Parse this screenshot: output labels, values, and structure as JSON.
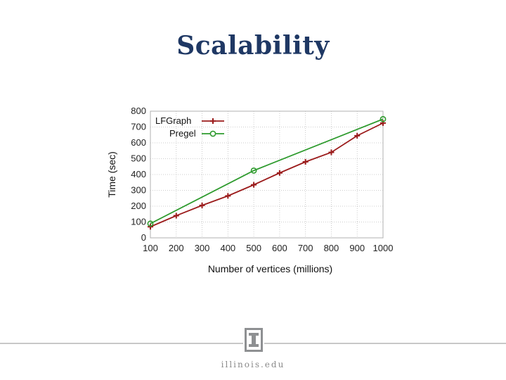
{
  "slide": {
    "title": "Scalability",
    "footer": "illinois.edu"
  },
  "colors": {
    "title": "#1f3864",
    "lfgraph": "#9b1b1b",
    "pregel": "#2e9b2e"
  },
  "chart_data": {
    "type": "line",
    "xlabel": "Number of vertices (millions)",
    "ylabel": "Time (sec)",
    "xlim": [
      100,
      1000
    ],
    "ylim": [
      0,
      800
    ],
    "xticks": [
      100,
      200,
      300,
      400,
      500,
      600,
      700,
      800,
      900,
      1000
    ],
    "yticks": [
      0,
      100,
      200,
      300,
      400,
      500,
      600,
      700,
      800
    ],
    "grid": true,
    "legend_position": "top-left",
    "series": [
      {
        "name": "LFGraph",
        "marker": "plus",
        "color": "#9b1b1b",
        "x": [
          100,
          200,
          300,
          400,
          500,
          600,
          700,
          800,
          900,
          1000
        ],
        "y": [
          70,
          140,
          205,
          265,
          335,
          410,
          480,
          540,
          645,
          725
        ]
      },
      {
        "name": "Pregel",
        "marker": "circle",
        "color": "#2e9b2e",
        "x": [
          100,
          500,
          1000
        ],
        "y": [
          90,
          425,
          750
        ]
      }
    ]
  }
}
